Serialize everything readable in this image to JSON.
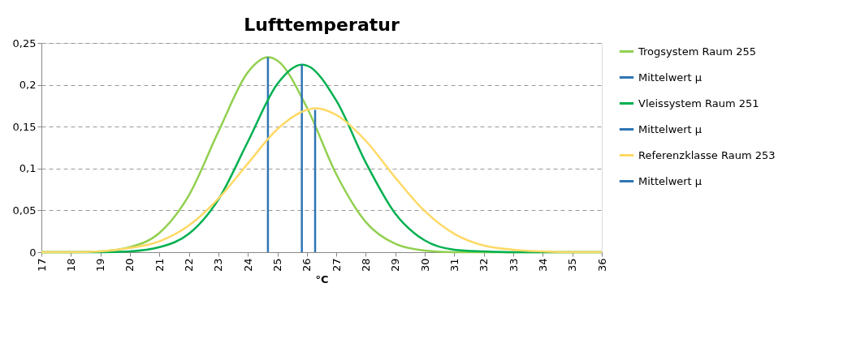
{
  "chart_data": {
    "type": "line",
    "title": "Lufttemperatur",
    "xlabel": "°C",
    "series": [
      {
        "name": "Trogsystem Raum 255",
        "color": "#92d050",
        "x": [
          17,
          18,
          19,
          20,
          21,
          22,
          23,
          24,
          24.68,
          25,
          26,
          27,
          28,
          29,
          30,
          31,
          32,
          33,
          34,
          35,
          36
        ],
        "values": [
          0,
          0,
          0.001,
          0.006,
          0.023,
          0.068,
          0.144,
          0.215,
          0.233,
          0.229,
          0.173,
          0.093,
          0.036,
          0.01,
          0.002,
          0,
          0,
          0,
          0,
          0,
          0
        ]
      },
      {
        "name": "Mittelwert μ",
        "color": "#2e75b6",
        "x": [
          24.68,
          24.68
        ],
        "values": [
          0,
          0.233
        ]
      },
      {
        "name": "Vleissystem Raum 251",
        "color": "#00b050",
        "x": [
          17,
          18,
          19,
          20,
          21,
          22,
          23,
          24,
          25,
          25.83,
          26,
          27,
          28,
          29,
          30,
          31,
          32,
          33,
          34,
          35,
          36
        ],
        "values": [
          0,
          0,
          0,
          0.001,
          0.006,
          0.022,
          0.063,
          0.132,
          0.201,
          0.224,
          0.223,
          0.181,
          0.107,
          0.046,
          0.014,
          0.003,
          0.001,
          0,
          0,
          0,
          0
        ]
      },
      {
        "name": "Mittelwert μ",
        "color": "#2e75b6",
        "x": [
          25.83,
          25.83
        ],
        "values": [
          0,
          0.224
        ]
      },
      {
        "name": "Referenzklasse Raum 253",
        "color": "#ffd966",
        "x": [
          17,
          18,
          19,
          20,
          21,
          22,
          23,
          24,
          25,
          26,
          26.28,
          27,
          28,
          29,
          30,
          31,
          32,
          33,
          34,
          35,
          36
        ],
        "values": [
          0,
          0,
          0.001,
          0.005,
          0.013,
          0.032,
          0.064,
          0.106,
          0.147,
          0.17,
          0.172,
          0.164,
          0.133,
          0.089,
          0.049,
          0.022,
          0.008,
          0.003,
          0.001,
          0,
          0
        ]
      },
      {
        "name": "Mittelwert μ",
        "color": "#2e75b6",
        "x": [
          26.28,
          26.28
        ],
        "values": [
          0,
          0.17
        ]
      }
    ],
    "xlim": [
      17,
      36
    ],
    "xticks": [
      17,
      18,
      19,
      20,
      21,
      22,
      23,
      24,
      25,
      26,
      27,
      28,
      29,
      30,
      31,
      32,
      33,
      34,
      35,
      36
    ],
    "ylim": [
      0,
      0.25
    ],
    "yticks": [
      0,
      {
        "value": 0.05,
        "label": "0,05"
      },
      {
        "value": 0.1,
        "label": "0,1"
      },
      {
        "value": 0.15,
        "label": "0,15"
      },
      {
        "value": 0.2,
        "label": "0,2"
      },
      {
        "value": 0.25,
        "label": "0,25"
      }
    ],
    "grid": "y",
    "legend": "right",
    "marker": "none",
    "line_style": "solid"
  }
}
